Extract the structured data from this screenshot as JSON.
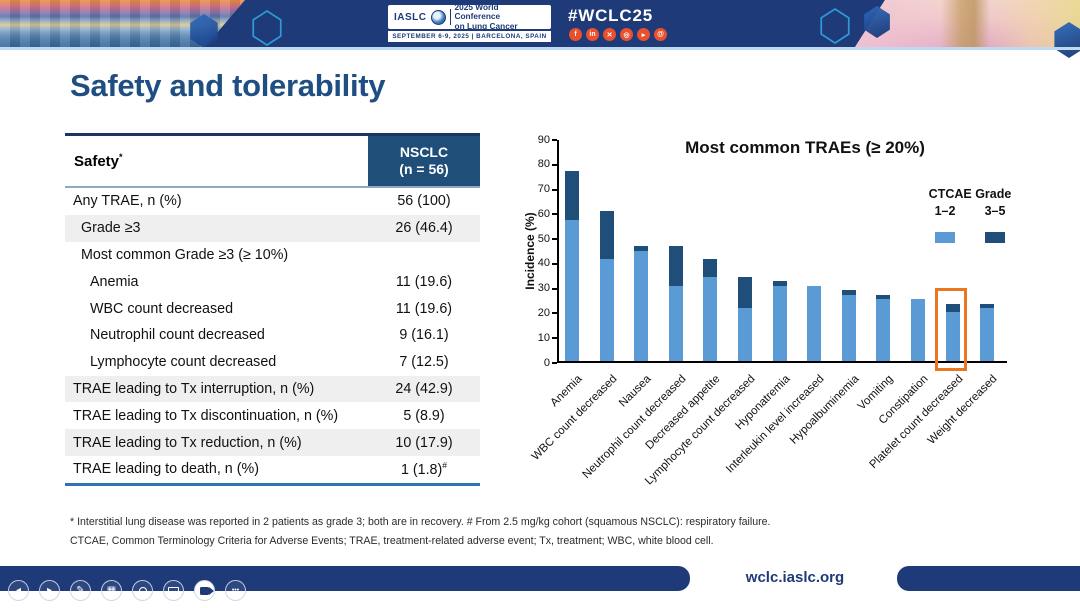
{
  "colors": {
    "navy": "#1E3A78",
    "title_blue": "#1F4E82",
    "table_header_blue": "#1F4E79",
    "bar_light_blue": "#5B9BD5",
    "bar_dark_blue": "#1F4E79",
    "highlight_orange": "#E87722",
    "social_orange": "#E8502E",
    "header_strip_blue": "#BFD9F0",
    "shaded_row_gray": "#EFEFEF"
  },
  "header": {
    "logo": {
      "iaslc": "IASLC",
      "conference_line1": "2025 World Conference",
      "conference_line2": "on Lung Cancer",
      "date_location": "SEPTEMBER 6-9, 2025   |   BARCELONA, SPAIN"
    },
    "hashtag": "#WCLC25",
    "social_icons": [
      {
        "name": "facebook-icon",
        "glyph": "f"
      },
      {
        "name": "linkedin-icon",
        "glyph": "in"
      },
      {
        "name": "x-icon",
        "glyph": "✕"
      },
      {
        "name": "instagram-icon",
        "glyph": "◎"
      },
      {
        "name": "youtube-icon",
        "glyph": "▸"
      },
      {
        "name": "threads-icon",
        "glyph": "@"
      }
    ]
  },
  "slide": {
    "title": "Safety and tolerability",
    "table": {
      "header": {
        "label": "Safety",
        "label_sup": "*",
        "value_line1": "NSCLC",
        "value_line2": "(n = 56)"
      },
      "rows": [
        {
          "label": "Any TRAE, n (%)",
          "value": "56 (100)",
          "indent": 0,
          "shaded": false
        },
        {
          "label": "Grade ≥3",
          "value": "26 (46.4)",
          "indent": 1,
          "shaded": true
        },
        {
          "label": "Most common Grade ≥3 (≥ 10%)",
          "value": "",
          "indent": 1,
          "shaded": false
        },
        {
          "label": "Anemia",
          "value": "11 (19.6)",
          "indent": 2,
          "shaded": false
        },
        {
          "label": "WBC count decreased",
          "value": "11 (19.6)",
          "indent": 2,
          "shaded": false
        },
        {
          "label": "Neutrophil count decreased",
          "value": "9 (16.1)",
          "indent": 2,
          "shaded": false
        },
        {
          "label": "Lymphocyte count decreased",
          "value": "7 (12.5)",
          "indent": 2,
          "shaded": false
        },
        {
          "label": "TRAE leading to Tx interruption, n (%)",
          "value": "24 (42.9)",
          "indent": 0,
          "shaded": true
        },
        {
          "label": "TRAE leading to Tx discontinuation, n (%)",
          "value": "5 (8.9)",
          "indent": 0,
          "shaded": false
        },
        {
          "label": "TRAE leading to Tx reduction, n (%)",
          "value": "10 (17.9)",
          "indent": 0,
          "shaded": true
        },
        {
          "label": "TRAE leading to death, n (%)",
          "value": "1 (1.8)",
          "value_sup": "#",
          "indent": 0,
          "shaded": false
        }
      ]
    },
    "footnotes": [
      "* Interstitial lung disease was reported in 2 patients as grade 3; both are in recovery. # From 2.5 mg/kg cohort (squamous NSCLC): respiratory failure.",
      "CTCAE, Common Terminology Criteria for Adverse Events; TRAE, treatment-related adverse event; Tx, treatment; WBC, white blood cell."
    ]
  },
  "chart_data": {
    "type": "bar",
    "stacked": true,
    "title": "Most common TRAEs (≥ 20%)",
    "ylabel": "Incidence (%)",
    "ylim": [
      0,
      90
    ],
    "yticks": [
      0,
      10,
      20,
      30,
      40,
      50,
      60,
      70,
      80,
      90
    ],
    "grid": false,
    "legend_title": "CTCAE Grade",
    "legend_position": "upper right",
    "categories": [
      "Anemia",
      "WBC count decreased",
      "Nausea",
      "Neutrophil count decreased",
      "Decreased appetite",
      "Lymphocyte count decreased",
      "Hyponatremia",
      "Interleukin level increased",
      "Hypoalbuminemia",
      "Vomiting",
      "Constipation",
      "Platelet count decreased",
      "Weight decreased"
    ],
    "series": [
      {
        "name": "1–2",
        "color": "#5B9BD5",
        "values": [
          57.1,
          41.1,
          44.6,
          30.4,
          33.9,
          21.4,
          30.4,
          30.4,
          26.8,
          25.0,
          25.0,
          19.6,
          21.4
        ]
      },
      {
        "name": "3–5",
        "color": "#1F4E79",
        "values": [
          19.6,
          19.6,
          1.8,
          16.1,
          7.1,
          12.5,
          1.8,
          0,
          1.8,
          1.8,
          0,
          3.6,
          1.8
        ]
      }
    ],
    "highlight": {
      "category": "Platelet count decreased",
      "index": 11,
      "color": "#E87722"
    }
  },
  "footer": {
    "url": "wclc.iaslc.org",
    "toolbar": [
      {
        "name": "previous-slide-button",
        "glyph": "◂"
      },
      {
        "name": "next-slide-button",
        "glyph": "▸"
      },
      {
        "name": "pen-button",
        "glyph": "✎"
      },
      {
        "name": "all-slides-button",
        "glyph": "▦"
      },
      {
        "name": "zoom-button",
        "glyph": "css-magnifier"
      },
      {
        "name": "keyboard-button",
        "glyph": "css-keyboard"
      },
      {
        "name": "camera-button",
        "glyph": "css-camera"
      },
      {
        "name": "more-options-button",
        "glyph": "•••"
      }
    ]
  }
}
